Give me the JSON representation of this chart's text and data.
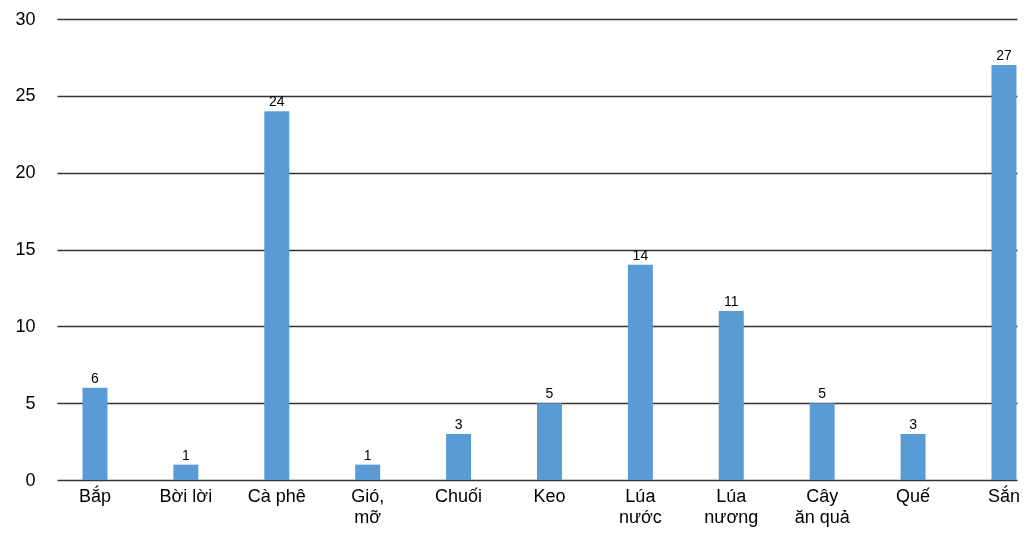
{
  "chart_data": {
    "type": "bar",
    "categories": [
      "Bắp",
      "Bời lời",
      "Cà phê",
      "Gió,\nmỡ",
      "Chuối",
      "Keo",
      "Lúa\nnước",
      "Lúa\nnương",
      "Cây\năn quả",
      "Quế",
      "Sắn"
    ],
    "values": [
      6,
      1,
      24,
      1,
      3,
      5,
      14,
      11,
      5,
      3,
      27
    ],
    "color": "#5b9bd5",
    "ylim": [
      0,
      30
    ],
    "yticks": [
      0,
      5,
      10,
      15,
      20,
      25,
      30
    ],
    "grid": "y",
    "data_labels": true
  }
}
